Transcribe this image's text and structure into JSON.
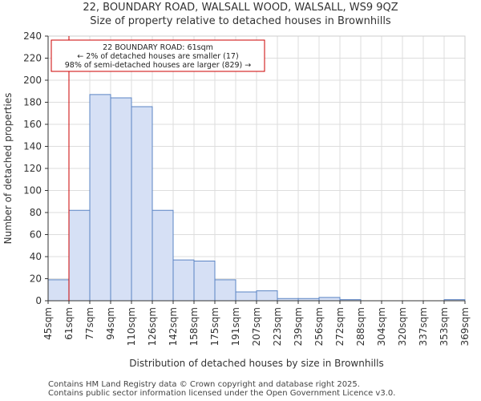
{
  "chart_data": {
    "type": "bar",
    "title": "22, BOUNDARY ROAD, WALSALL WOOD, WALSALL, WS9 9QZ",
    "subtitle": "Size of property relative to detached houses in Brownhills",
    "xlabel": "Distribution of detached houses by size in Brownhills",
    "ylabel": "Number of detached properties",
    "ylim": [
      0,
      240
    ],
    "yticks": [
      0,
      20,
      40,
      60,
      80,
      100,
      120,
      140,
      160,
      180,
      200,
      220,
      240
    ],
    "bin_edges": [
      "45sqm",
      "61sqm",
      "77sqm",
      "94sqm",
      "110sqm",
      "126sqm",
      "142sqm",
      "158sqm",
      "175sqm",
      "191sqm",
      "207sqm",
      "223sqm",
      "239sqm",
      "256sqm",
      "272sqm",
      "288sqm",
      "304sqm",
      "320sqm",
      "337sqm",
      "353sqm",
      "369sqm"
    ],
    "values": [
      19,
      82,
      187,
      184,
      176,
      82,
      37,
      36,
      19,
      8,
      9,
      2,
      2,
      3,
      1,
      0,
      0,
      0,
      0,
      1
    ],
    "grid": true,
    "bar_fill": "#d6e0f5",
    "bar_stroke": "#5b84c4",
    "marker": {
      "bin_index": 1,
      "color": "#cc0000"
    },
    "annotation": {
      "lines": [
        "22 BOUNDARY ROAD: 61sqm",
        "← 2% of detached houses are smaller (17)",
        "98% of semi-detached houses are larger (829) →"
      ],
      "border_color": "#cc0000"
    }
  },
  "footer": {
    "line1": "Contains HM Land Registry data © Crown copyright and database right 2025.",
    "line2": "Contains public sector information licensed under the Open Government Licence v3.0."
  }
}
